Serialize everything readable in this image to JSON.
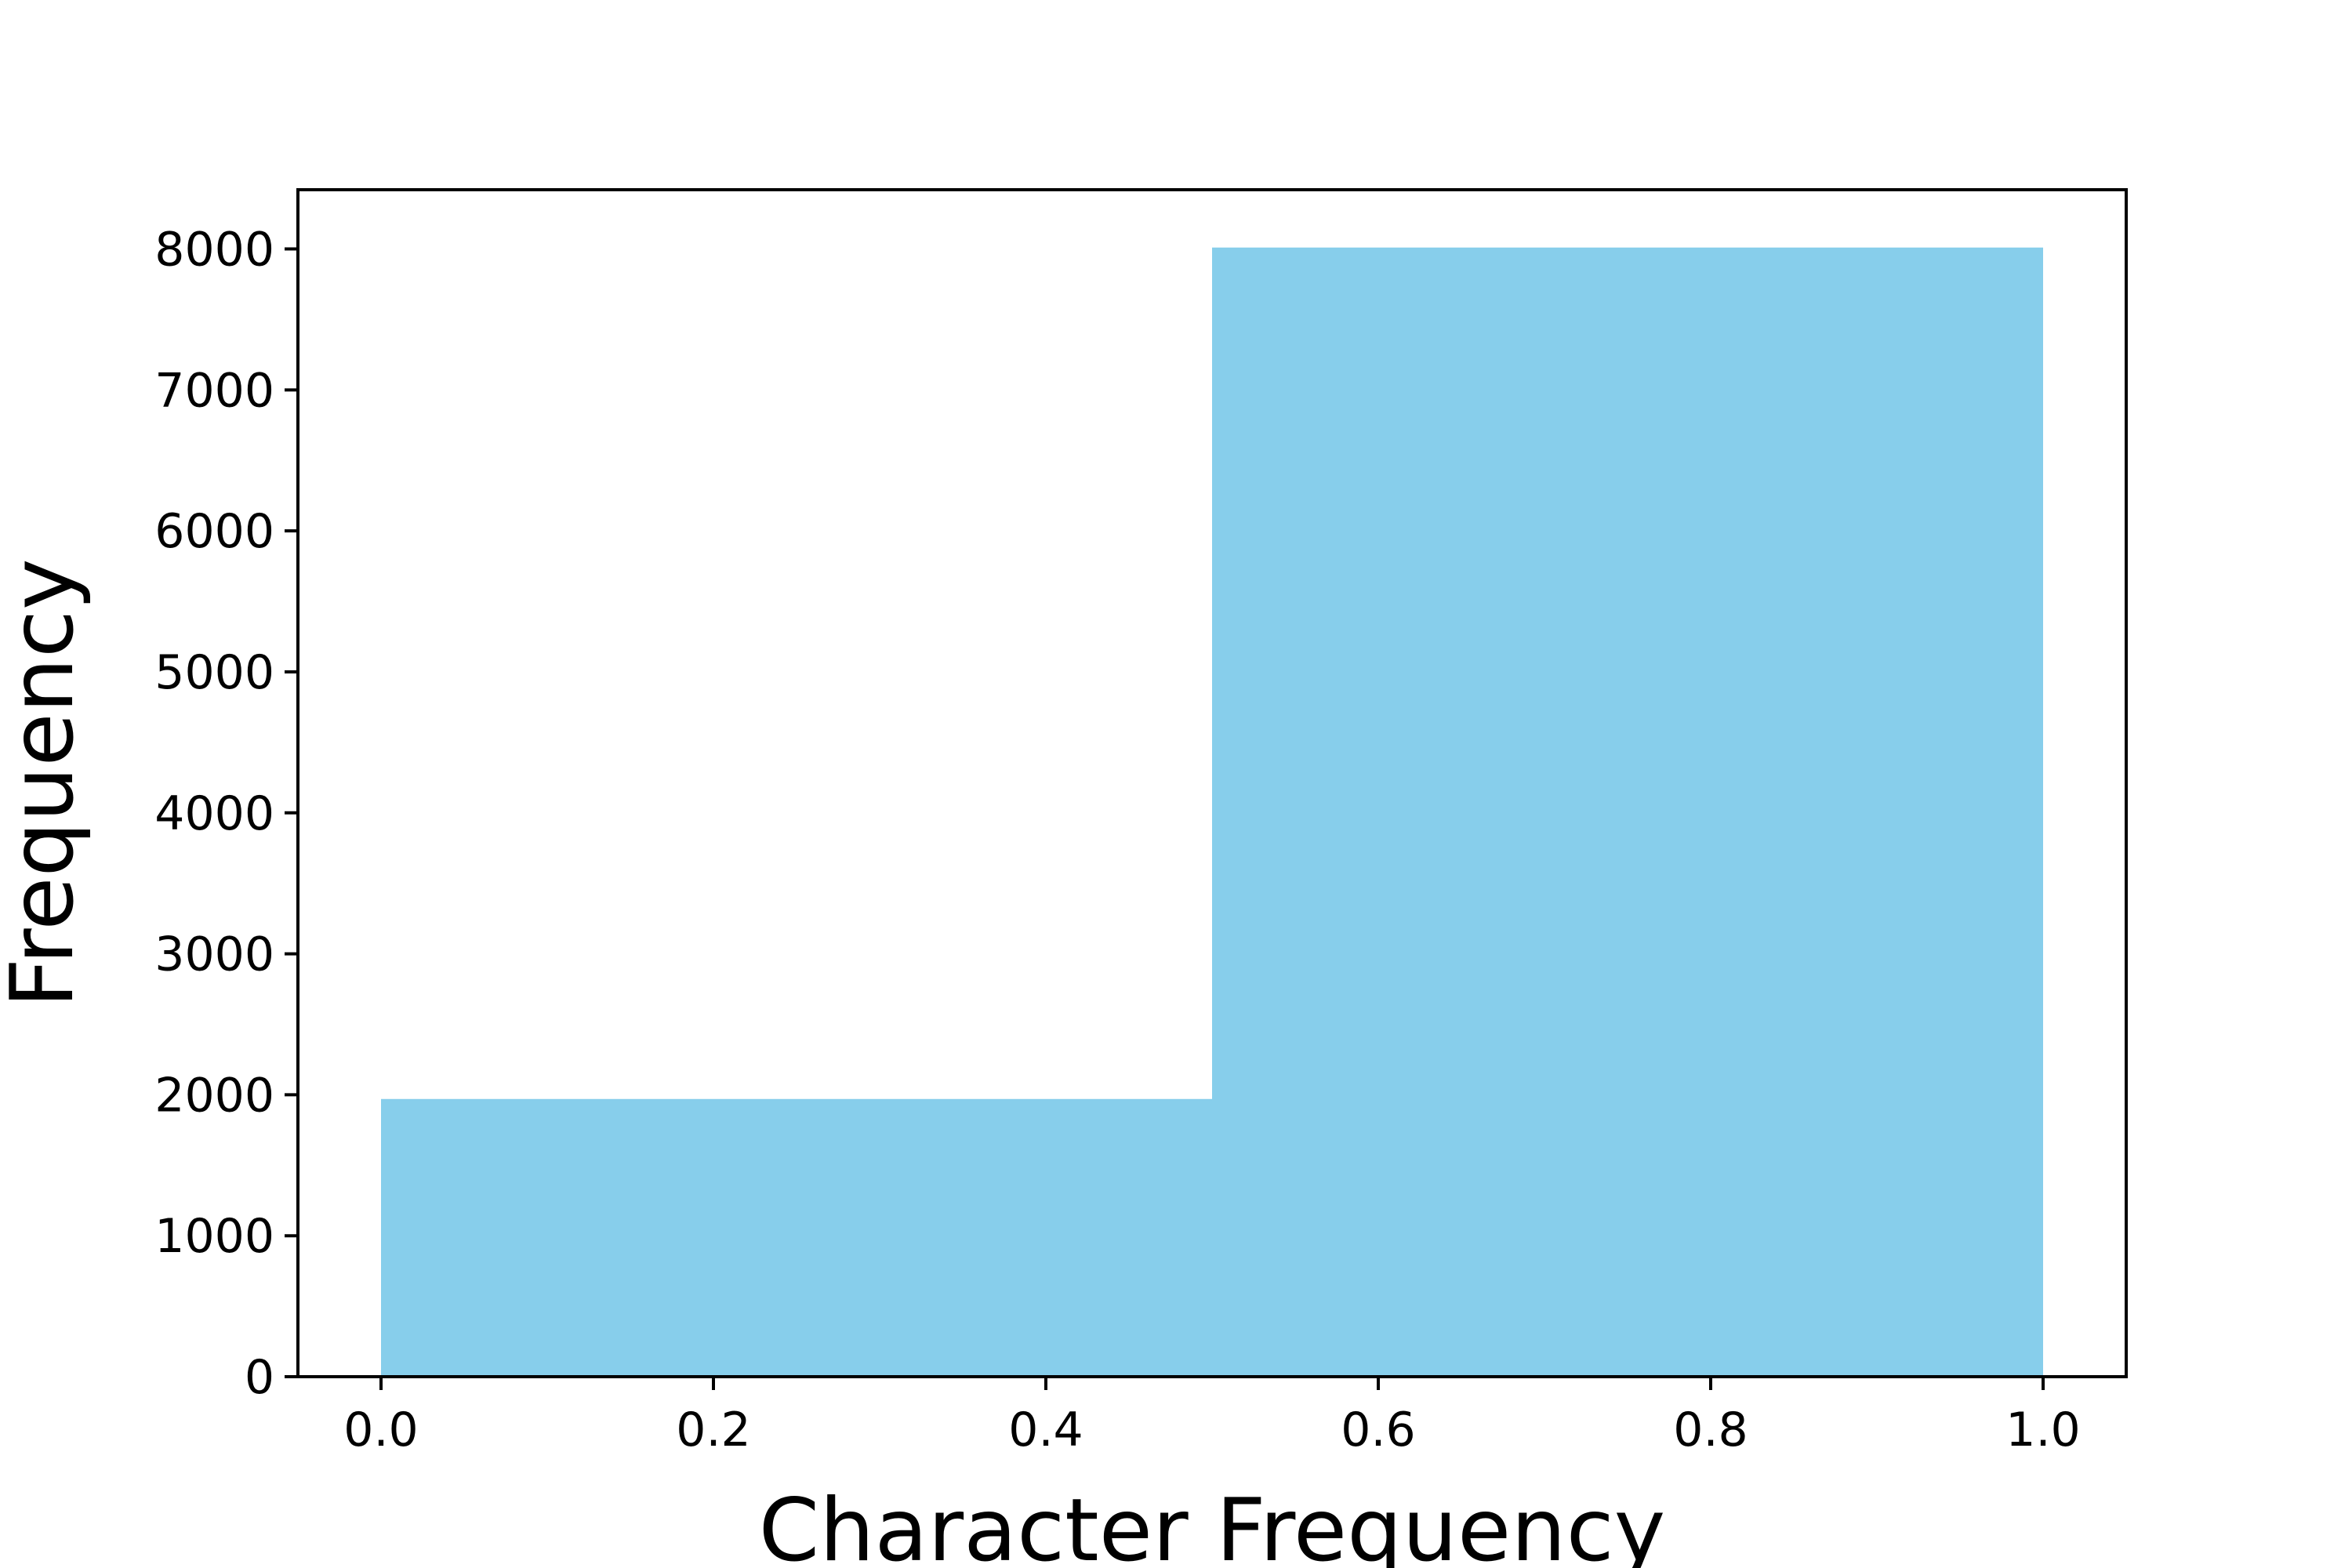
{
  "chart_data": {
    "type": "bar",
    "bins": [
      {
        "x_start": 0.0,
        "x_end": 0.5,
        "value": 1970
      },
      {
        "x_start": 0.5,
        "x_end": 1.0,
        "value": 8010
      }
    ],
    "xlabel": "Character Frequency",
    "ylabel": "Frequency",
    "xlim": [
      -0.05,
      1.05
    ],
    "ylim": [
      0,
      8420
    ],
    "xticks": [
      {
        "value": 0.0,
        "label": "0.0"
      },
      {
        "value": 0.2,
        "label": "0.2"
      },
      {
        "value": 0.4,
        "label": "0.4"
      },
      {
        "value": 0.6,
        "label": "0.6"
      },
      {
        "value": 0.8,
        "label": "0.8"
      },
      {
        "value": 1.0,
        "label": "1.0"
      }
    ],
    "yticks": [
      {
        "value": 0,
        "label": "0"
      },
      {
        "value": 1000,
        "label": "1000"
      },
      {
        "value": 2000,
        "label": "2000"
      },
      {
        "value": 3000,
        "label": "3000"
      },
      {
        "value": 4000,
        "label": "4000"
      },
      {
        "value": 5000,
        "label": "5000"
      },
      {
        "value": 6000,
        "label": "6000"
      },
      {
        "value": 7000,
        "label": "7000"
      },
      {
        "value": 8000,
        "label": "8000"
      }
    ],
    "bar_color": "#87CEEB",
    "grid": false,
    "legend": "none"
  }
}
